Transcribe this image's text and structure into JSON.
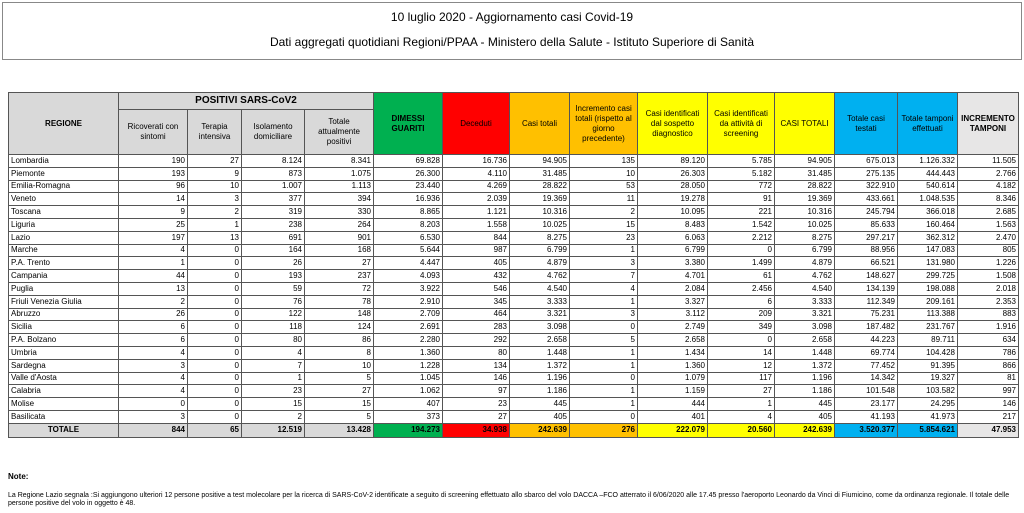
{
  "header": {
    "title": "10 luglio 2020 - Aggiornamento casi Covid-19",
    "subtitle": "Dati aggregati quotidiani Regioni/PPAA - Ministero della Salute - Istituto Superiore di Sanità"
  },
  "table": {
    "group_header": "POSITIVI SARS-CoV2",
    "columns": [
      "REGIONE",
      "Ricoverati con sintomi",
      "Terapia intensiva",
      "Isolamento domiciliare",
      "Totale attualmente positivi",
      "DIMESSI GUARITI",
      "Deceduti",
      "Casi totali",
      "Incremento casi totali (rispetto al giorno precedente)",
      "Casi identificati dal sospetto diagnostico",
      "Casi identificati da attività di screening",
      "CASI TOTALI",
      "Totale casi testati",
      "Totale tamponi effettuati",
      "INCREMENTO TAMPONI"
    ],
    "rows": [
      [
        "Lombardia",
        "190",
        "27",
        "8.124",
        "8.341",
        "69.828",
        "16.736",
        "94.905",
        "135",
        "89.120",
        "5.785",
        "94.905",
        "675.013",
        "1.126.332",
        "11.505"
      ],
      [
        "Piemonte",
        "193",
        "9",
        "873",
        "1.075",
        "26.300",
        "4.110",
        "31.485",
        "10",
        "26.303",
        "5.182",
        "31.485",
        "275.135",
        "444.443",
        "2.766"
      ],
      [
        "Emilia-Romagna",
        "96",
        "10",
        "1.007",
        "1.113",
        "23.440",
        "4.269",
        "28.822",
        "53",
        "28.050",
        "772",
        "28.822",
        "322.910",
        "540.614",
        "4.182"
      ],
      [
        "Veneto",
        "14",
        "3",
        "377",
        "394",
        "16.936",
        "2.039",
        "19.369",
        "11",
        "19.278",
        "91",
        "19.369",
        "433.661",
        "1.048.535",
        "8.346"
      ],
      [
        "Toscana",
        "9",
        "2",
        "319",
        "330",
        "8.865",
        "1.121",
        "10.316",
        "2",
        "10.095",
        "221",
        "10.316",
        "245.794",
        "366.018",
        "2.685"
      ],
      [
        "Liguria",
        "25",
        "1",
        "238",
        "264",
        "8.203",
        "1.558",
        "10.025",
        "15",
        "8.483",
        "1.542",
        "10.025",
        "85.633",
        "160.464",
        "1.563"
      ],
      [
        "Lazio",
        "197",
        "13",
        "691",
        "901",
        "6.530",
        "844",
        "8.275",
        "23",
        "6.063",
        "2.212",
        "8.275",
        "297.217",
        "362.312",
        "2.470"
      ],
      [
        "Marche",
        "4",
        "0",
        "164",
        "168",
        "5.644",
        "987",
        "6.799",
        "1",
        "6.799",
        "0",
        "6.799",
        "88.956",
        "147.083",
        "805"
      ],
      [
        "P.A. Trento",
        "1",
        "0",
        "26",
        "27",
        "4.447",
        "405",
        "4.879",
        "3",
        "3.380",
        "1.499",
        "4.879",
        "66.521",
        "131.980",
        "1.226"
      ],
      [
        "Campania",
        "44",
        "0",
        "193",
        "237",
        "4.093",
        "432",
        "4.762",
        "7",
        "4.701",
        "61",
        "4.762",
        "148.627",
        "299.725",
        "1.508"
      ],
      [
        "Puglia",
        "13",
        "0",
        "59",
        "72",
        "3.922",
        "546",
        "4.540",
        "4",
        "2.084",
        "2.456",
        "4.540",
        "134.139",
        "198.088",
        "2.018"
      ],
      [
        "Friuli Venezia Giulia",
        "2",
        "0",
        "76",
        "78",
        "2.910",
        "345",
        "3.333",
        "1",
        "3.327",
        "6",
        "3.333",
        "112.349",
        "209.161",
        "2.353"
      ],
      [
        "Abruzzo",
        "26",
        "0",
        "122",
        "148",
        "2.709",
        "464",
        "3.321",
        "3",
        "3.112",
        "209",
        "3.321",
        "75.231",
        "113.388",
        "883"
      ],
      [
        "Sicilia",
        "6",
        "0",
        "118",
        "124",
        "2.691",
        "283",
        "3.098",
        "0",
        "2.749",
        "349",
        "3.098",
        "187.482",
        "231.767",
        "1.916"
      ],
      [
        "P.A. Bolzano",
        "6",
        "0",
        "80",
        "86",
        "2.280",
        "292",
        "2.658",
        "5",
        "2.658",
        "0",
        "2.658",
        "44.223",
        "89.711",
        "634"
      ],
      [
        "Umbria",
        "4",
        "0",
        "4",
        "8",
        "1.360",
        "80",
        "1.448",
        "1",
        "1.434",
        "14",
        "1.448",
        "69.774",
        "104.428",
        "786"
      ],
      [
        "Sardegna",
        "3",
        "0",
        "7",
        "10",
        "1.228",
        "134",
        "1.372",
        "1",
        "1.360",
        "12",
        "1.372",
        "77.452",
        "91.395",
        "866"
      ],
      [
        "Valle d'Aosta",
        "4",
        "0",
        "1",
        "5",
        "1.045",
        "146",
        "1.196",
        "0",
        "1.079",
        "117",
        "1.196",
        "14.342",
        "19.327",
        "81"
      ],
      [
        "Calabria",
        "4",
        "0",
        "23",
        "27",
        "1.062",
        "97",
        "1.186",
        "1",
        "1.159",
        "27",
        "1.186",
        "101.548",
        "103.582",
        "997"
      ],
      [
        "Molise",
        "0",
        "0",
        "15",
        "15",
        "407",
        "23",
        "445",
        "1",
        "444",
        "1",
        "445",
        "23.177",
        "24.295",
        "146"
      ],
      [
        "Basilicata",
        "3",
        "0",
        "2",
        "5",
        "373",
        "27",
        "405",
        "0",
        "401",
        "4",
        "405",
        "41.193",
        "41.973",
        "217"
      ]
    ],
    "total": [
      "TOTALE",
      "844",
      "65",
      "12.519",
      "13.428",
      "194.273",
      "34.938",
      "242.639",
      "276",
      "222.079",
      "20.560",
      "242.639",
      "3.520.377",
      "5.854.621",
      "47.953"
    ]
  },
  "note": {
    "label": "Note:",
    "text": "La Regione Lazio segnala :Si aggiungono ulteriori 12 persone positive a test molecolare per la ricerca di SARS-CoV-2 identificate a seguito di screening effettuato allo sbarco del volo DACCA –FCO atterrato il 6/06/2020 alle 17.45 presso l'aeroporto Leonardo da Vinci di Fiumicino, come da ordinanza regionale. Il totale delle persone positive del volo in oggetto è 48."
  }
}
